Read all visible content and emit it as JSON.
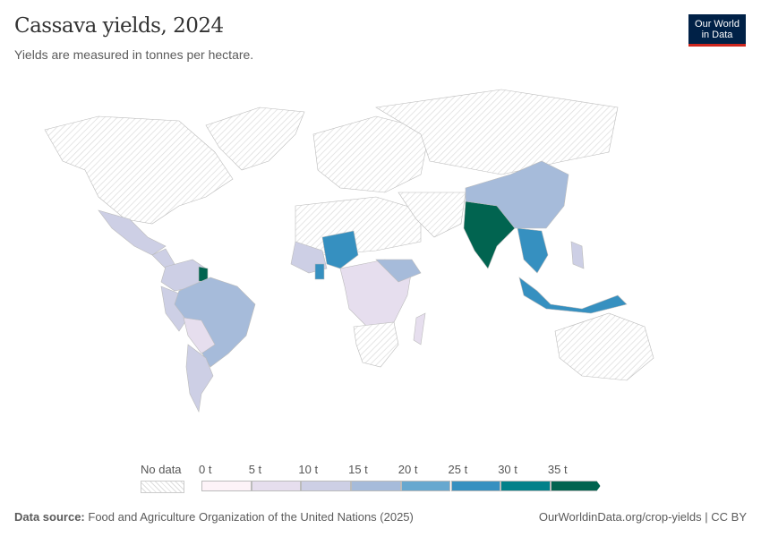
{
  "header": {
    "title": "Cassava yields, 2024",
    "subtitle": "Yields are measured in tonnes per hectare."
  },
  "logo": {
    "line1": "Our World",
    "line2": "in Data"
  },
  "legend": {
    "no_data_label": "No data",
    "bins": [
      {
        "label": "0 t",
        "color": "#fdf3f8"
      },
      {
        "label": "5 t",
        "color": "#e6deee"
      },
      {
        "label": "10 t",
        "color": "#cdcfe5"
      },
      {
        "label": "15 t",
        "color": "#a6bbda"
      },
      {
        "label": "20 t",
        "color": "#67a8cf"
      },
      {
        "label": "25 t",
        "color": "#3690c0"
      },
      {
        "label": "30 t",
        "color": "#02818a"
      },
      {
        "label": "35 t",
        "color": "#016450"
      }
    ]
  },
  "footer": {
    "source_label": "Data source:",
    "source": "Food and Agriculture Organization of the United Nations (2025)",
    "link": "OurWorldinData.org/crop-yields | CC BY"
  }
}
